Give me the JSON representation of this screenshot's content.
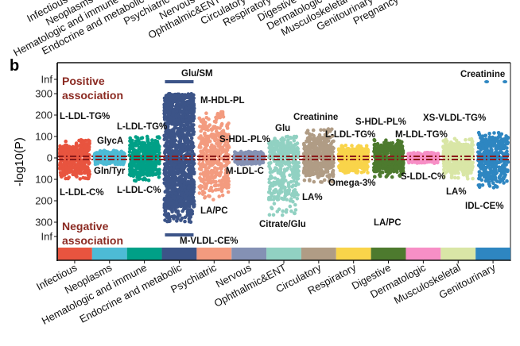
{
  "panel_label": "b",
  "top_panel_categories": [
    "Infectious",
    "Neoplasms",
    "Hematologic and immune",
    "Endocrine and metabolic",
    "Psychiatric",
    "Nervous",
    "Ophthalmic&ENT",
    "Circulatory",
    "Respiratory",
    "Digestive",
    "Dermatologic",
    "Musculoskeletal",
    "Genitourinary",
    "Pregnancy"
  ],
  "chart_data": {
    "type": "scatter",
    "title": "",
    "ylabel": "-log10(P)",
    "ylabel_main": "-log",
    "ylabel_sub": "10",
    "ylabel_tail": "(P)",
    "yticks_positive": [
      "Inf",
      "300",
      "200",
      "100",
      "0"
    ],
    "yticks_negative": [
      "100",
      "200",
      "300",
      "Inf"
    ],
    "ylim_positive": [
      0,
      300
    ],
    "ylim_negative": [
      0,
      300
    ],
    "positive_label": [
      "Positive",
      "association"
    ],
    "negative_label": [
      "Negative",
      "association"
    ],
    "reference_line_color": "#8B1A1A",
    "categories": [
      {
        "name": "Infectious",
        "color": "#E8543F",
        "pos_max": 85,
        "neg_max": 100,
        "top_label": "L-LDL-TG%",
        "bottom_label": "L-LDL-C%"
      },
      {
        "name": "Neoplasms",
        "color": "#4DBBD5",
        "pos_max": 35,
        "neg_max": 30,
        "top_label": "GlycA",
        "bottom_label": "Gln/Tyr"
      },
      {
        "name": "Hematologic and immune",
        "color": "#00A087",
        "pos_max": 100,
        "neg_max": 110,
        "top_label": "L-LDL-TG%",
        "bottom_label": "L-LDL-C%"
      },
      {
        "name": "Endocrine and metabolic",
        "color": "#3C5488",
        "pos_max": "Inf",
        "neg_max": "Inf",
        "top_label": "Glu/SM",
        "bottom_label": "M-VLDL-CE%"
      },
      {
        "name": "Psychiatric",
        "color": "#F39B7F",
        "pos_max": 215,
        "neg_max": 200,
        "top_label": "M-HDL-PL",
        "bottom_label": "LA/PC"
      },
      {
        "name": "Nervous",
        "color": "#8491B4",
        "pos_max": 30,
        "neg_max": 30,
        "top_label": "S-HDL-PL%",
        "bottom_label": "M-LDL-C"
      },
      {
        "name": "Ophthalmic&ENT",
        "color": "#91D1C2",
        "pos_max": 100,
        "neg_max": 270,
        "top_label": "Glu",
        "bottom_label": "Citrate/Glu"
      },
      {
        "name": "Circulatory",
        "color": "#B09C85",
        "pos_max": 135,
        "neg_max": 115,
        "top_label": "Creatinine",
        "bottom_label": "LA%"
      },
      {
        "name": "Respiratory",
        "color": "#F9D44A",
        "pos_max": 60,
        "neg_max": 70,
        "top_label": "L-LDL-TG%",
        "bottom_label": "Omega-3%"
      },
      {
        "name": "Digestive",
        "color": "#4D7A2E",
        "pos_max": 85,
        "neg_max": 90,
        "top_label": "S-HDL-PL%",
        "bottom_label": "LA/PC"
      },
      {
        "name": "Dermatologic",
        "color": "#F78FC6",
        "pos_max": 25,
        "neg_max": 25,
        "top_label": "M-LDL-TG%",
        "bottom_label": "S-LDL-C%"
      },
      {
        "name": "Musculoskeletal",
        "color": "#D9E6A6",
        "pos_max": 90,
        "neg_max": 100,
        "top_label": "XS-VLDL-TG%",
        "bottom_label": "LA%"
      },
      {
        "name": "Genitourinary",
        "color": "#2E86C1",
        "pos_max": "Inf",
        "neg_max": 140,
        "top_label": "Creatinine",
        "bottom_label": "IDL-CE%"
      }
    ]
  }
}
